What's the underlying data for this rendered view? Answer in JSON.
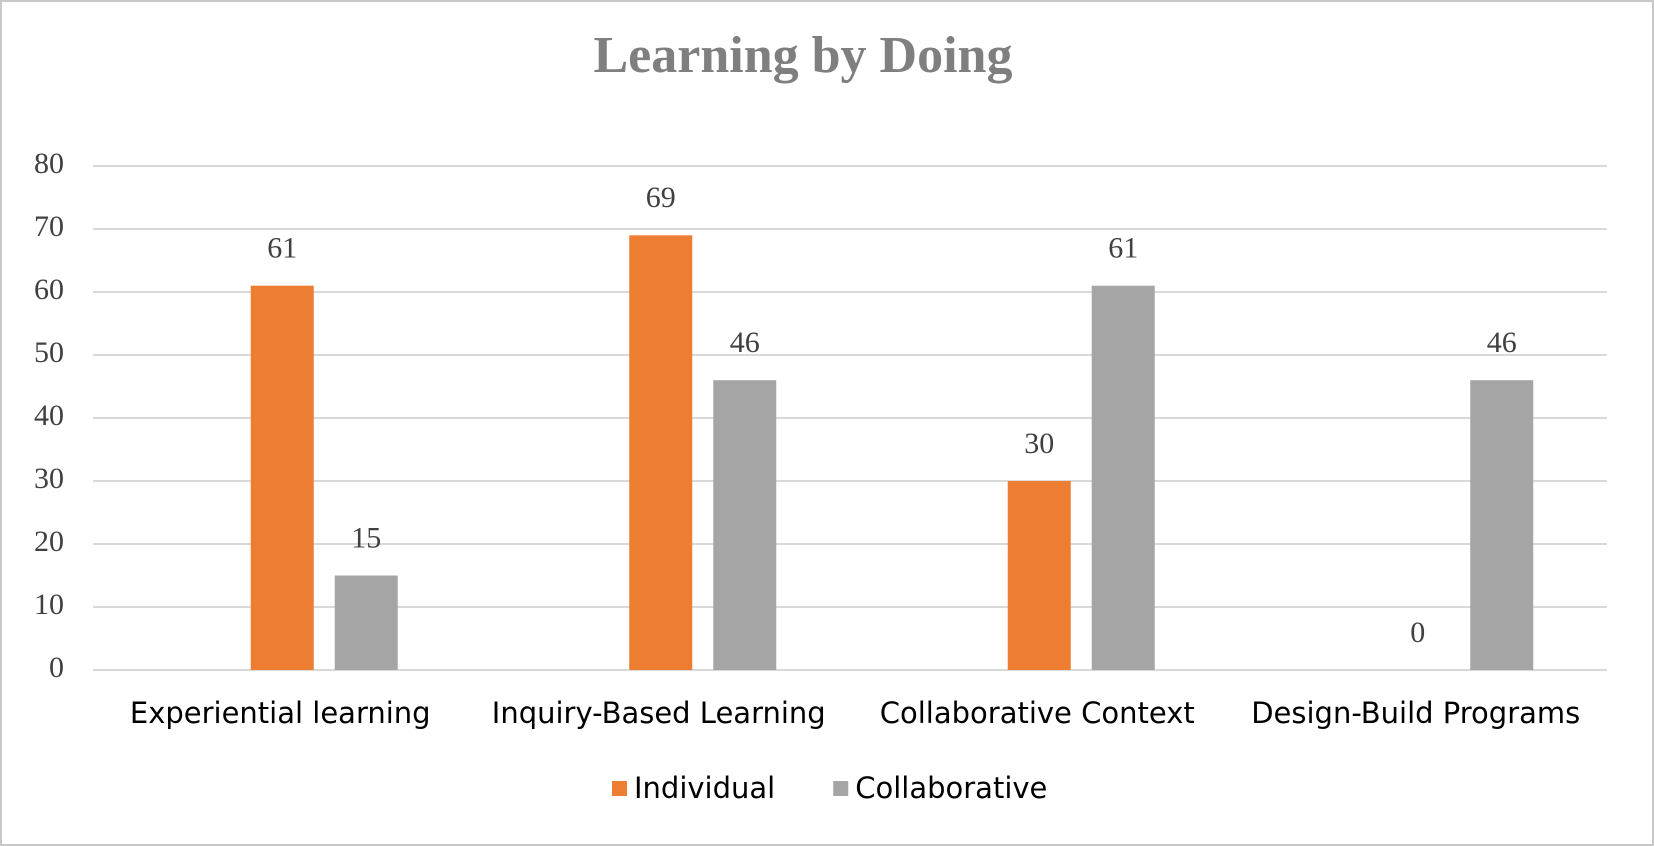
{
  "chart_data": {
    "type": "bar",
    "title": "Learning by Doing",
    "categories": [
      "Experiential learning",
      "Inquiry-Based Learning",
      "Collaborative Context",
      "Design-Build Programs"
    ],
    "series": [
      {
        "name": "Individual",
        "color": "#ed7d31",
        "values": [
          61,
          69,
          30,
          0
        ]
      },
      {
        "name": "Collaborative",
        "color": "#a5a5a5",
        "values": [
          15,
          46,
          61,
          46
        ]
      }
    ],
    "ylim": [
      0,
      80
    ],
    "yticks": [
      0,
      10,
      20,
      30,
      40,
      50,
      60,
      70,
      80
    ],
    "grid": true,
    "legend": "bottom"
  }
}
